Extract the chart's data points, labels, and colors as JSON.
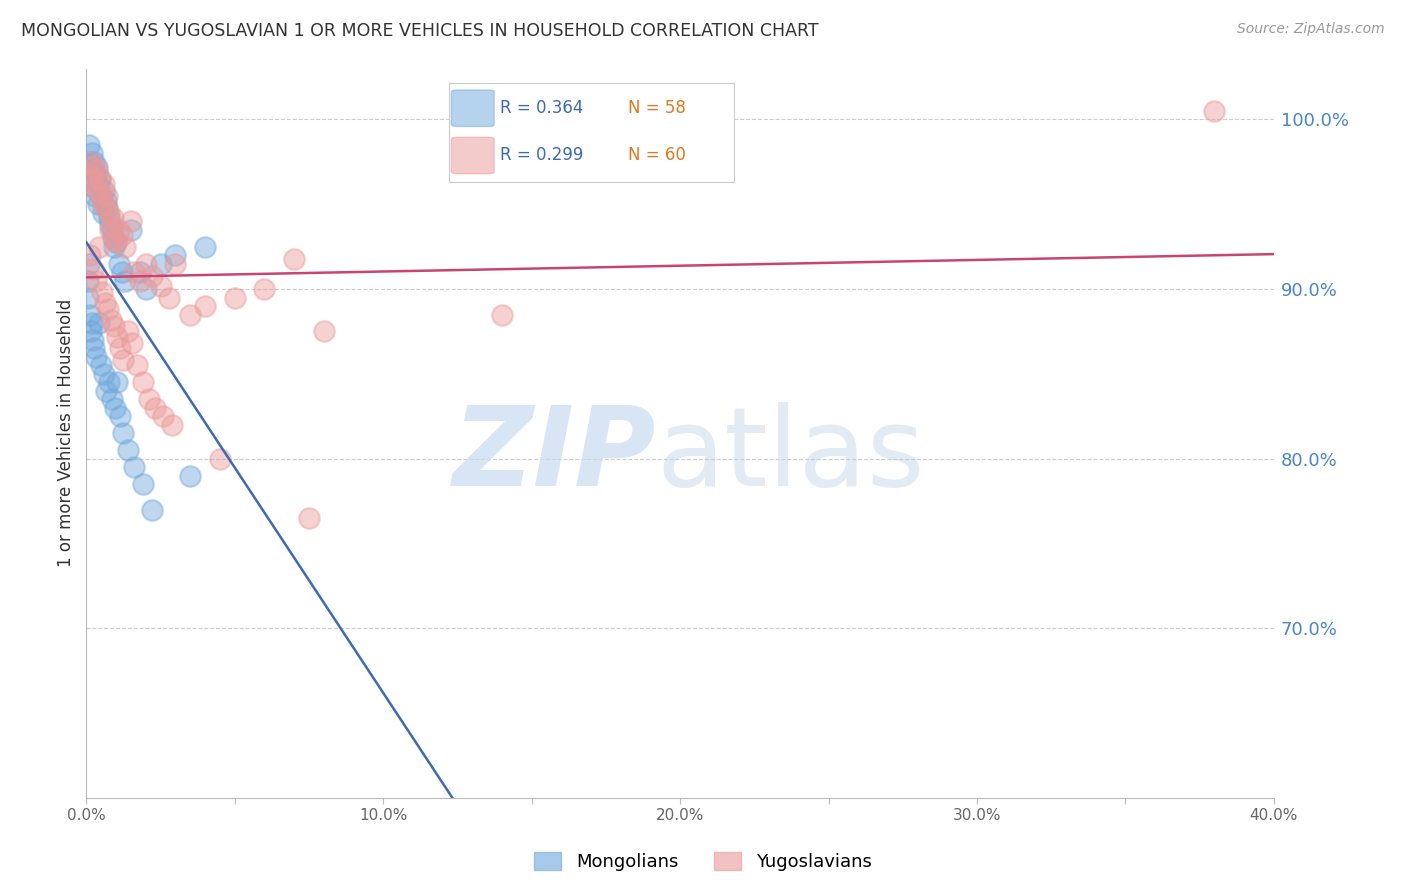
{
  "title": "MONGOLIAN VS YUGOSLAVIAN 1 OR MORE VEHICLES IN HOUSEHOLD CORRELATION CHART",
  "source": "Source: ZipAtlas.com",
  "ylabel": "1 or more Vehicles in Household",
  "mongolian_color": "#6fa8dc",
  "yugoslavian_color": "#ea9999",
  "trend_mongolian_color": "#3d6ab0",
  "trend_yugoslavian_color": "#c94470",
  "right_axis_color": "#4a86c8",
  "xlim_pct": [
    0.0,
    40.0
  ],
  "ylim_pct": [
    60.0,
    103.0
  ],
  "yticks_right": [
    70.0,
    80.0,
    90.0,
    100.0
  ],
  "mongolian_x": [
    0.08,
    0.12,
    0.15,
    0.18,
    0.2,
    0.22,
    0.25,
    0.28,
    0.3,
    0.32,
    0.35,
    0.38,
    0.4,
    0.45,
    0.5,
    0.55,
    0.6,
    0.65,
    0.7,
    0.75,
    0.8,
    0.85,
    0.9,
    0.95,
    1.0,
    1.1,
    1.2,
    1.3,
    1.5,
    1.8,
    2.0,
    2.5,
    3.0,
    4.0,
    0.05,
    0.07,
    0.1,
    0.13,
    0.16,
    0.19,
    0.23,
    0.27,
    0.33,
    0.42,
    0.48,
    0.58,
    0.68,
    0.78,
    0.88,
    0.98,
    1.05,
    1.15,
    1.25,
    1.4,
    1.6,
    1.9,
    2.2,
    3.5
  ],
  "mongolian_y": [
    98.5,
    97.5,
    96.5,
    98.0,
    97.0,
    96.0,
    97.5,
    96.5,
    95.5,
    96.8,
    97.2,
    96.2,
    95.0,
    96.5,
    95.5,
    94.5,
    95.8,
    95.2,
    94.8,
    94.2,
    93.8,
    93.5,
    93.0,
    92.5,
    92.8,
    91.5,
    91.0,
    90.5,
    93.5,
    91.0,
    90.0,
    91.5,
    92.0,
    92.5,
    89.5,
    90.5,
    91.5,
    88.5,
    87.5,
    88.0,
    87.0,
    86.5,
    86.0,
    88.0,
    85.5,
    85.0,
    84.0,
    84.5,
    83.5,
    83.0,
    84.5,
    82.5,
    81.5,
    80.5,
    79.5,
    78.5,
    77.0,
    79.0
  ],
  "yugoslavian_x": [
    0.1,
    0.15,
    0.2,
    0.25,
    0.3,
    0.35,
    0.4,
    0.45,
    0.5,
    0.55,
    0.6,
    0.65,
    0.7,
    0.75,
    0.8,
    0.85,
    0.9,
    0.95,
    1.0,
    1.1,
    1.2,
    1.3,
    1.5,
    1.6,
    1.8,
    2.0,
    2.2,
    2.5,
    2.8,
    3.0,
    3.5,
    4.0,
    5.0,
    6.0,
    7.0,
    8.0,
    0.12,
    0.22,
    0.32,
    0.42,
    0.52,
    0.62,
    0.72,
    0.82,
    0.92,
    1.05,
    1.15,
    1.25,
    1.4,
    1.55,
    1.7,
    1.9,
    2.1,
    2.3,
    2.6,
    2.9,
    4.5,
    7.5,
    14.0,
    38.0
  ],
  "yugoslavian_y": [
    96.8,
    97.5,
    96.5,
    97.2,
    96.0,
    97.0,
    95.8,
    96.5,
    95.5,
    95.0,
    96.2,
    94.8,
    95.5,
    94.5,
    93.5,
    93.8,
    94.2,
    93.0,
    92.8,
    93.5,
    93.2,
    92.5,
    94.0,
    91.0,
    90.5,
    91.5,
    90.8,
    90.2,
    89.5,
    91.5,
    88.5,
    89.0,
    89.5,
    90.0,
    91.8,
    87.5,
    92.0,
    91.2,
    90.5,
    92.5,
    89.8,
    89.2,
    88.8,
    88.2,
    87.8,
    87.2,
    86.5,
    85.8,
    87.5,
    86.8,
    85.5,
    84.5,
    83.5,
    83.0,
    82.5,
    82.0,
    80.0,
    76.5,
    88.5,
    100.5
  ]
}
